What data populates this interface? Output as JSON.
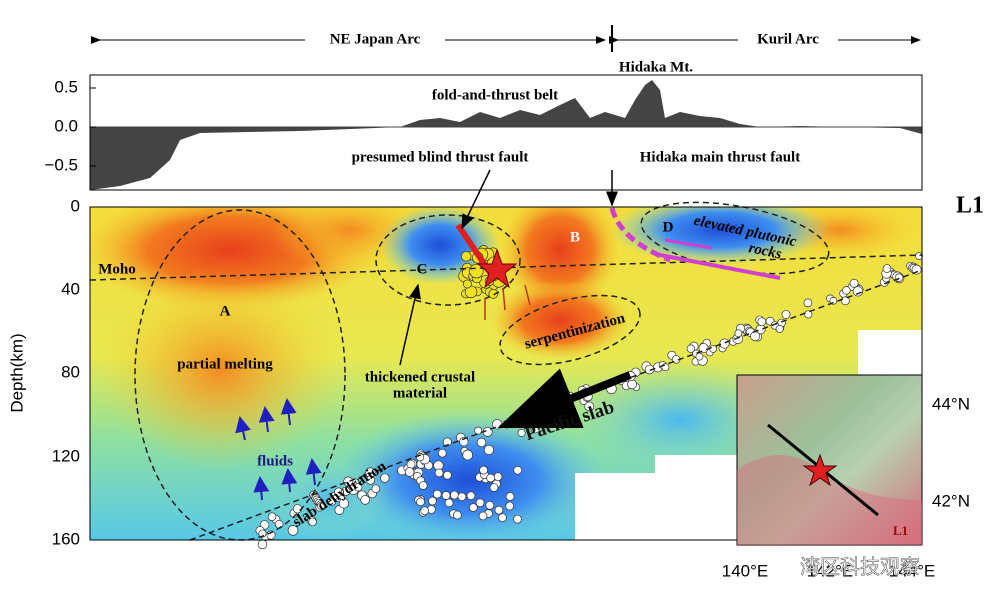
{
  "header": {
    "left_arc": "NE Japan Arc",
    "right_arc": "Kuril Arc"
  },
  "topography": {
    "yticks": [
      "0.5",
      "0.0",
      "−0.5"
    ],
    "labels": [
      "fold-and-thrust belt",
      "Hidaka Mt."
    ]
  },
  "section": {
    "id": "L1",
    "y_axis_label": "Depth(km)",
    "yticks": [
      "0",
      "40",
      "80",
      "120",
      "160"
    ],
    "faults": [
      "presumed blind thrust fault",
      "Hidaka main thrust fault"
    ],
    "annotations": [
      "Moho",
      "A",
      "partial melting",
      "fluids",
      "C",
      "thickened crustal",
      "material",
      "B",
      "serpentinization",
      "D",
      "elevated plutonic",
      "rocks",
      "Pacific slab",
      "slab dehydration"
    ]
  },
  "inset": {
    "yticks": [
      "44°N",
      "42°N"
    ],
    "xticks": [
      "140°E",
      "142°E",
      "144°E"
    ],
    "line": "L1"
  },
  "watermark": "湾区科技观察"
}
